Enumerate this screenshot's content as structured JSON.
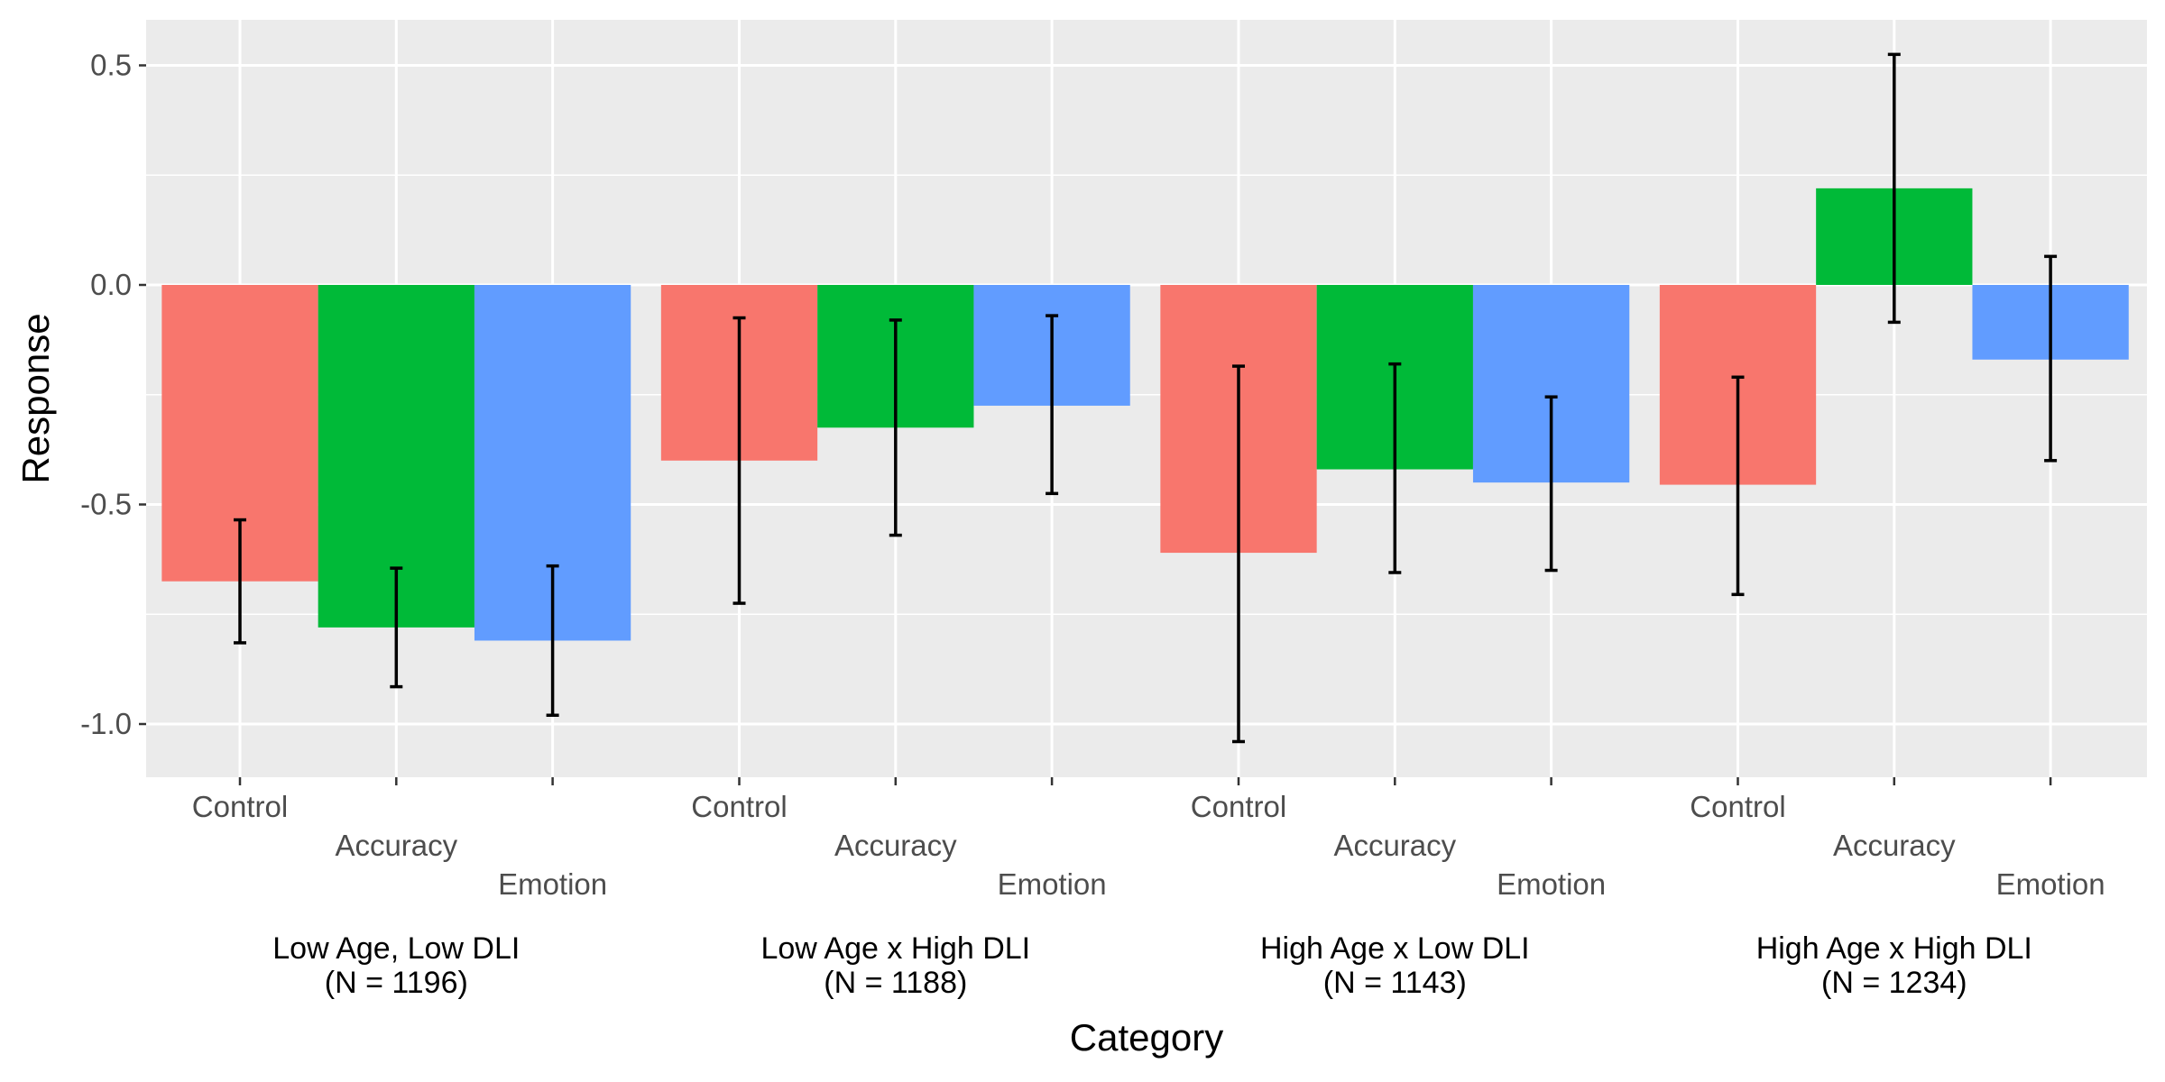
{
  "chart_data": {
    "type": "bar",
    "xlabel": "Category",
    "ylabel": "Response",
    "ylim": [
      -1.12,
      0.6
    ],
    "yticks": [
      "0.5",
      "0.0",
      "-0.5",
      "-1.0"
    ],
    "ytick_values": [
      0.5,
      0.0,
      -0.5,
      -1.0
    ],
    "grid": true,
    "legend": "none",
    "groups": [
      {
        "label_line1": "Low Age, Low DLI",
        "label_line2": "(N = 1196)",
        "bars": [
          {
            "category": "Control",
            "value": -0.675,
            "lower": -0.815,
            "upper": -0.535,
            "color": "#F8766D"
          },
          {
            "category": "Accuracy",
            "value": -0.78,
            "lower": -0.915,
            "upper": -0.645,
            "color": "#00BA38"
          },
          {
            "category": "Emotion",
            "value": -0.81,
            "lower": -0.98,
            "upper": -0.64,
            "color": "#619CFF"
          }
        ]
      },
      {
        "label_line1": "Low Age x High DLI",
        "label_line2": "(N = 1188)",
        "bars": [
          {
            "category": "Control",
            "value": -0.4,
            "lower": -0.725,
            "upper": -0.075,
            "color": "#F8766D"
          },
          {
            "category": "Accuracy",
            "value": -0.325,
            "lower": -0.57,
            "upper": -0.08,
            "color": "#00BA38"
          },
          {
            "category": "Emotion",
            "value": -0.275,
            "lower": -0.475,
            "upper": -0.07,
            "color": "#619CFF"
          }
        ]
      },
      {
        "label_line1": "High Age x Low DLI",
        "label_line2": "(N = 1143)",
        "bars": [
          {
            "category": "Control",
            "value": -0.61,
            "lower": -1.04,
            "upper": -0.185,
            "color": "#F8766D"
          },
          {
            "category": "Accuracy",
            "value": -0.42,
            "lower": -0.655,
            "upper": -0.18,
            "color": "#00BA38"
          },
          {
            "category": "Emotion",
            "value": -0.45,
            "lower": -0.65,
            "upper": -0.255,
            "color": "#619CFF"
          }
        ]
      },
      {
        "label_line1": "High Age x High DLI",
        "label_line2": "(N = 1234)",
        "bars": [
          {
            "category": "Control",
            "value": -0.455,
            "lower": -0.705,
            "upper": -0.21,
            "color": "#F8766D"
          },
          {
            "category": "Accuracy",
            "value": 0.22,
            "lower": -0.085,
            "upper": 0.525,
            "color": "#00BA38"
          },
          {
            "category": "Emotion",
            "value": -0.17,
            "lower": -0.4,
            "upper": 0.065,
            "color": "#619CFF"
          }
        ]
      }
    ]
  }
}
